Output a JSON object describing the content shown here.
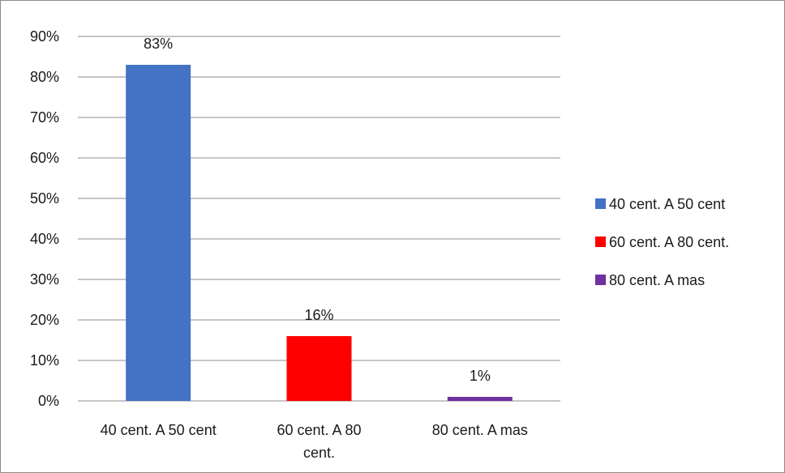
{
  "chart_data": {
    "type": "bar",
    "title": "",
    "xlabel": "",
    "ylabel": "",
    "categories": [
      "40 cent. A 50 cent",
      "60 cent. A 80 cent.",
      "80 cent. A mas"
    ],
    "category_lines": [
      [
        "40 cent. A 50 cent"
      ],
      [
        "60 cent. A 80",
        "cent."
      ],
      [
        "80 cent. A mas"
      ]
    ],
    "values": [
      0.83,
      0.16,
      0.01
    ],
    "data_labels": [
      "83%",
      "16%",
      "1%"
    ],
    "colors": [
      "#4472C4",
      "#FF0000",
      "#7030A0"
    ],
    "ylim": [
      0,
      0.9
    ],
    "yticks": [
      0,
      0.1,
      0.2,
      0.3,
      0.4,
      0.5,
      0.6,
      0.7,
      0.8,
      0.9
    ],
    "ytick_labels": [
      "0%",
      "10%",
      "20%",
      "30%",
      "40%",
      "50%",
      "60%",
      "70%",
      "80%",
      "90%"
    ],
    "grid": true,
    "legend": {
      "position": "right",
      "entries": [
        "40 cent. A 50 cent",
        "60 cent. A 80 cent.",
        "80 cent. A mas"
      ]
    }
  }
}
